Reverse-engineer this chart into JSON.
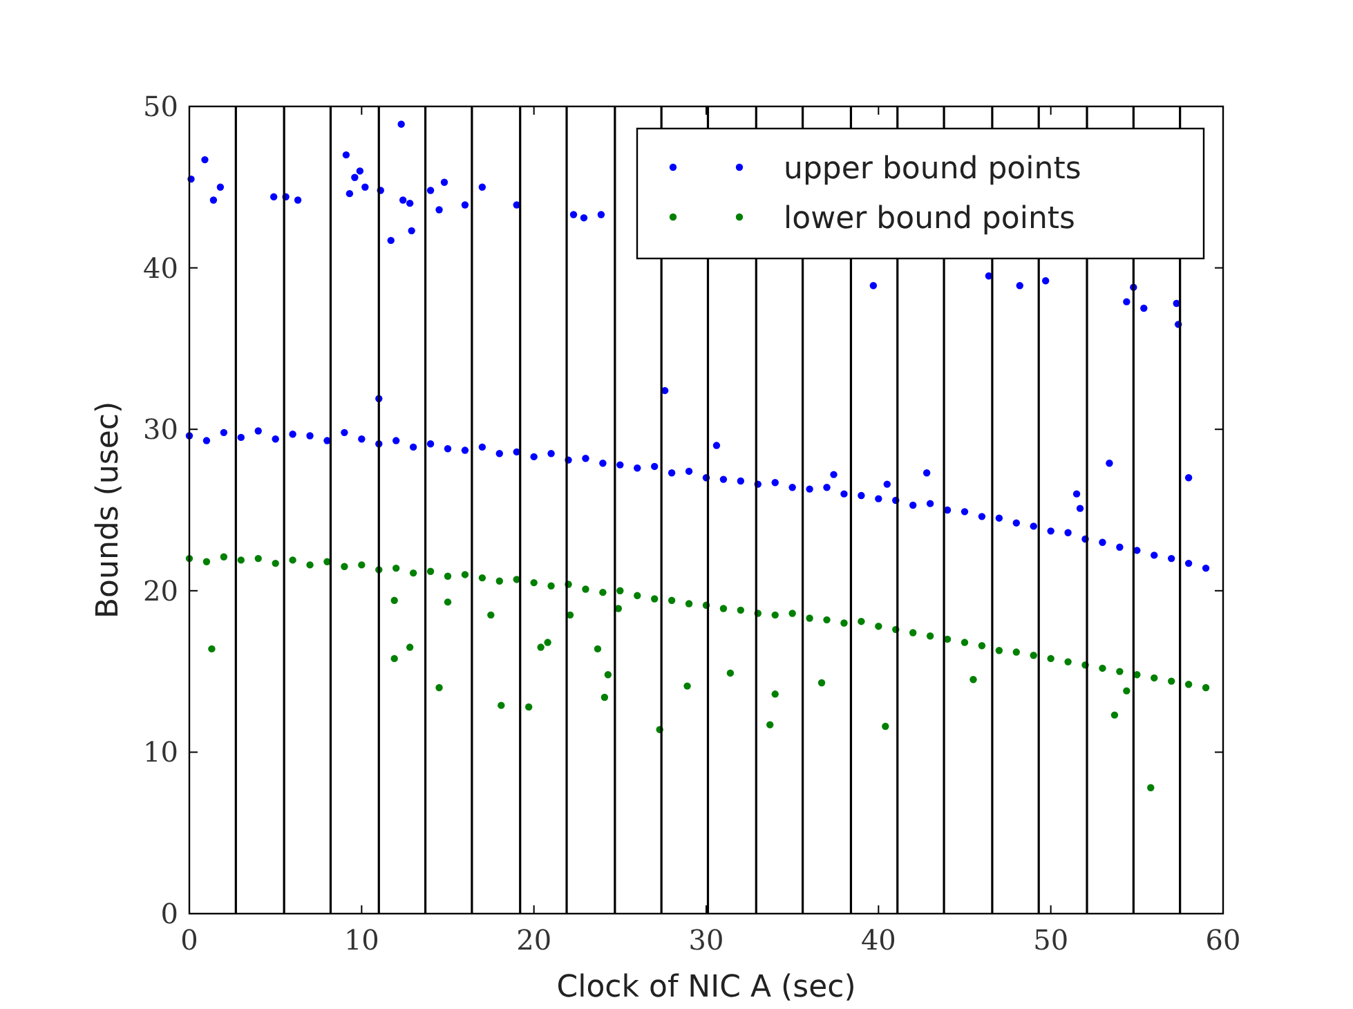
{
  "chart_data": {
    "type": "scatter",
    "xlabel": "Clock of NIC A (sec)",
    "ylabel": "Bounds (usec)",
    "xlim": [
      0,
      60
    ],
    "ylim": [
      0,
      50
    ],
    "xticks": [
      0,
      10,
      20,
      30,
      40,
      50,
      60
    ],
    "yticks": [
      0,
      10,
      20,
      30,
      40,
      50
    ],
    "grid": false,
    "legend": "top right",
    "marker": "circle",
    "series": [
      {
        "name": "upper bound points",
        "color": "#0000ff",
        "x": [
          0,
          1,
          2,
          3,
          4,
          5,
          6,
          7,
          8,
          9,
          10,
          11,
          12,
          13,
          14,
          15,
          16,
          17,
          18,
          19,
          20,
          21,
          22,
          23,
          24,
          25,
          26,
          27,
          28,
          29,
          30,
          31,
          32,
          33,
          34,
          35,
          36,
          37,
          38,
          39,
          40,
          41,
          42,
          43,
          44,
          45,
          46,
          47,
          48,
          49,
          50,
          51,
          52,
          53,
          54,
          55,
          56,
          57,
          58,
          59,
          0.1,
          0.9,
          1.4,
          1.8,
          4.9,
          5.6,
          6.3,
          9.1,
          9.3,
          9.6,
          9.9,
          10.2,
          11.1,
          11.7,
          12.3,
          12.4,
          12.8,
          12.9,
          14,
          14.5,
          14.8,
          16,
          17,
          19,
          22.3,
          22.9,
          23.9,
          11,
          27.6,
          30.6,
          37.4,
          39.7,
          40.5,
          42.8,
          46.4,
          48.2,
          49.7,
          51.5,
          51.7,
          53.4,
          54.4,
          54.8,
          55.4,
          57.3,
          57.4,
          58
        ],
        "values": [
          29.6,
          29.3,
          29.8,
          29.5,
          29.9,
          29.4,
          29.7,
          29.6,
          29.3,
          29.8,
          29.4,
          29.1,
          29.3,
          28.9,
          29.1,
          28.8,
          28.7,
          28.9,
          28.5,
          28.6,
          28.3,
          28.5,
          28.1,
          28.2,
          27.9,
          27.8,
          27.6,
          27.7,
          27.3,
          27.4,
          27,
          26.9,
          26.8,
          26.6,
          26.7,
          26.4,
          26.3,
          26.4,
          26,
          25.9,
          25.7,
          25.6,
          25.3,
          25.4,
          25,
          24.9,
          24.6,
          24.5,
          24.2,
          24,
          23.7,
          23.6,
          23.2,
          23,
          22.7,
          22.5,
          22.2,
          22,
          21.7,
          21.4,
          45.5,
          46.7,
          44.2,
          45,
          44.4,
          44.4,
          44.2,
          47,
          44.6,
          45.6,
          46,
          45,
          44.8,
          41.7,
          48.9,
          44.2,
          44,
          42.3,
          44.8,
          43.6,
          45.3,
          43.9,
          45,
          43.9,
          43.3,
          43.1,
          43.3,
          31.9,
          32.4,
          29,
          27.2,
          38.9,
          26.6,
          27.3,
          39.5,
          38.9,
          39.2,
          26,
          25.1,
          27.9,
          37.9,
          38.8,
          37.5,
          37.8,
          36.5,
          27
        ]
      },
      {
        "name": "lower bound points",
        "color": "#008000",
        "x": [
          0,
          1,
          2,
          3,
          4,
          5,
          6,
          7,
          8,
          9,
          10,
          11,
          12,
          13,
          14,
          15,
          16,
          17,
          18,
          19,
          20,
          21,
          22,
          23,
          24,
          25,
          26,
          27,
          28,
          29,
          30,
          31,
          32,
          33,
          34,
          35,
          36,
          37,
          38,
          39,
          40,
          41,
          42,
          43,
          44,
          45,
          46,
          47,
          48,
          49,
          50,
          51,
          52,
          53,
          54,
          55,
          56,
          57,
          58,
          59,
          1.3,
          11.9,
          11.9,
          12.8,
          14.5,
          15,
          17.5,
          18.1,
          19.7,
          20.4,
          20.8,
          22.1,
          23.7,
          24.1,
          24.3,
          24.9,
          27.3,
          28.9,
          31.4,
          33.7,
          34,
          36.7,
          40.4,
          45.5,
          53.7,
          55.8,
          54.4
        ],
        "values": [
          22,
          21.8,
          22.1,
          21.9,
          22,
          21.7,
          21.9,
          21.6,
          21.8,
          21.5,
          21.6,
          21.3,
          21.4,
          21.1,
          21.2,
          20.9,
          21,
          20.8,
          20.6,
          20.7,
          20.5,
          20.3,
          20.4,
          20.1,
          19.9,
          20,
          19.7,
          19.5,
          19.4,
          19.2,
          19.1,
          18.9,
          18.8,
          18.6,
          18.5,
          18.6,
          18.3,
          18.2,
          18,
          18.1,
          17.8,
          17.6,
          17.4,
          17.2,
          17,
          16.8,
          16.6,
          16.3,
          16.2,
          16,
          15.8,
          15.6,
          15.4,
          15.2,
          15,
          14.8,
          14.6,
          14.4,
          14.2,
          14,
          16.4,
          19.4,
          15.8,
          16.5,
          14,
          19.3,
          18.5,
          12.9,
          12.8,
          16.5,
          16.8,
          18.5,
          16.4,
          13.4,
          14.8,
          18.9,
          11.4,
          14.1,
          14.9,
          11.7,
          13.6,
          14.3,
          11.6,
          14.5,
          12.3,
          7.8,
          13.8
        ]
      }
    ],
    "ref_lines": [
      {
        "axis": "x",
        "value": 2.7,
        "color": "#000000"
      },
      {
        "axis": "x",
        "value": 5.5,
        "color": "#000000"
      },
      {
        "axis": "x",
        "value": 8.2,
        "color": "#000000"
      },
      {
        "axis": "x",
        "value": 11,
        "color": "#000000"
      },
      {
        "axis": "x",
        "value": 13.7,
        "color": "#000000"
      },
      {
        "axis": "x",
        "value": 16.4,
        "color": "#000000"
      },
      {
        "axis": "x",
        "value": 19.2,
        "color": "#000000"
      },
      {
        "axis": "x",
        "value": 21.9,
        "color": "#000000"
      },
      {
        "axis": "x",
        "value": 24.7,
        "color": "#000000"
      },
      {
        "axis": "x",
        "value": 27.4,
        "color": "#000000"
      },
      {
        "axis": "x",
        "value": 30.1,
        "color": "#000000"
      },
      {
        "axis": "x",
        "value": 32.9,
        "color": "#000000"
      },
      {
        "axis": "x",
        "value": 35.6,
        "color": "#000000"
      },
      {
        "axis": "x",
        "value": 38.4,
        "color": "#000000"
      },
      {
        "axis": "x",
        "value": 41.1,
        "color": "#000000"
      },
      {
        "axis": "x",
        "value": 43.8,
        "color": "#000000"
      },
      {
        "axis": "x",
        "value": 46.6,
        "color": "#000000"
      },
      {
        "axis": "x",
        "value": 49.3,
        "color": "#000000"
      },
      {
        "axis": "x",
        "value": 52.1,
        "color": "#000000"
      },
      {
        "axis": "x",
        "value": 54.8,
        "color": "#000000"
      },
      {
        "axis": "x",
        "value": 57.5,
        "color": "#000000"
      }
    ]
  }
}
